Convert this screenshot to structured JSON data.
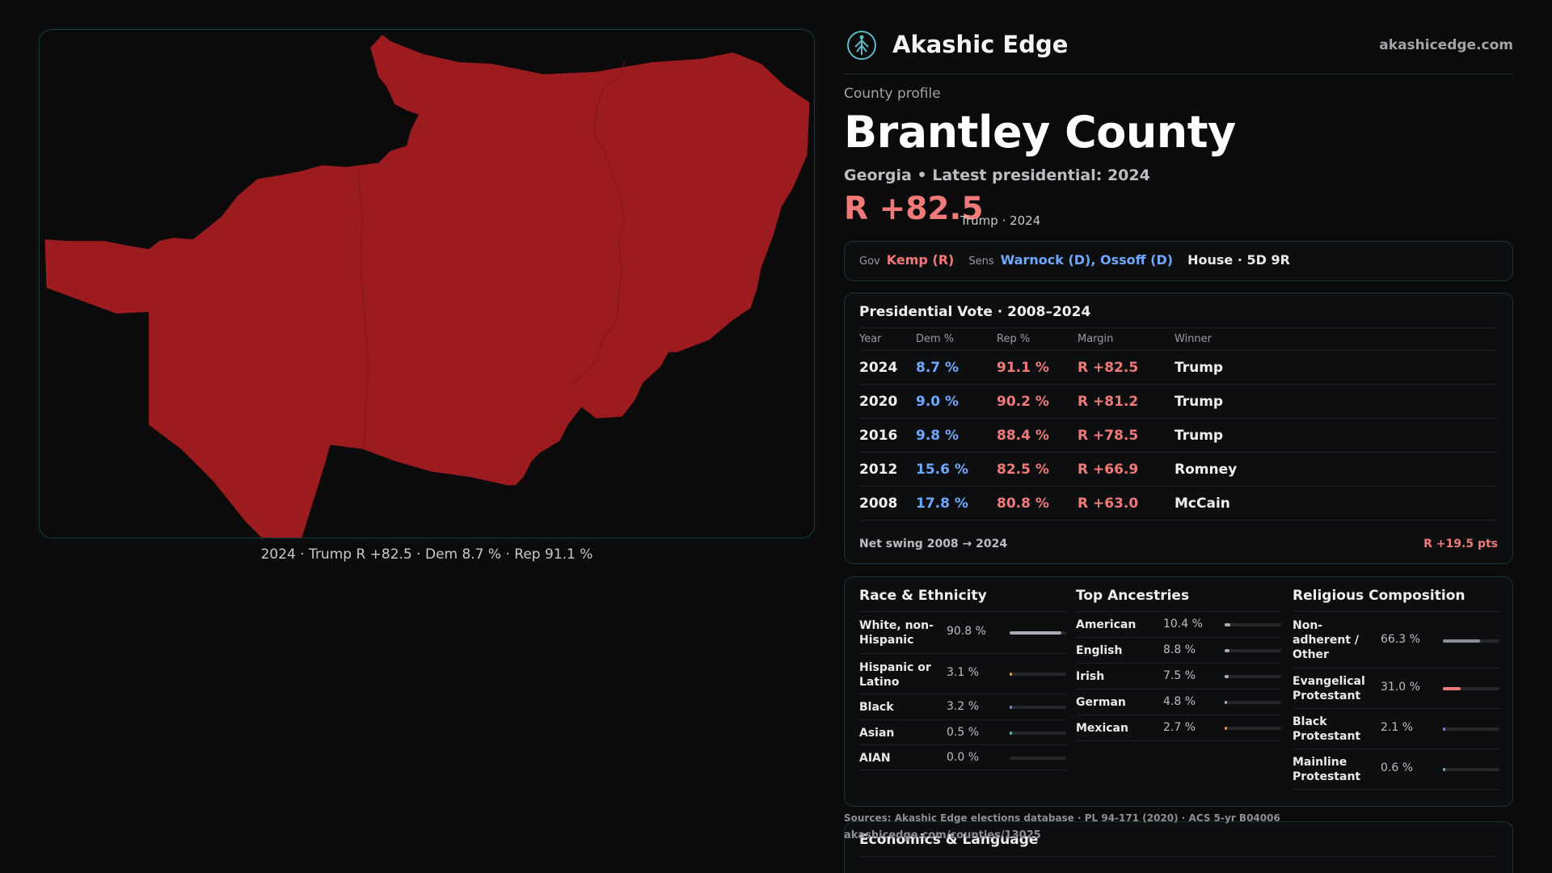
{
  "map": {
    "caption": "2024 · Trump R +82.5 · Dem 8.7 % · Rep 91.1 %",
    "fill_color": "#9b1b1f"
  },
  "brand": {
    "name": "Akashic Edge",
    "url": "akashicedge.com",
    "logo_icon": "tree-globe-icon"
  },
  "county": {
    "eyebrow": "County profile",
    "name": "Brantley County",
    "subtitle": "Georgia • Latest presidential: 2024",
    "margin": "R +82.5",
    "margin_note": "Trump · 2024"
  },
  "officials": {
    "gov_label": "Gov",
    "gov": "Kemp (R)",
    "sens_label": "Sens",
    "sens": "Warnock (D), Ossoff (D)",
    "house": "House · 5D 9R"
  },
  "presidential": {
    "title": "Presidential Vote · 2008–2024",
    "headers": [
      "Year",
      "Dem %",
      "Rep %",
      "Margin",
      "Winner"
    ],
    "rows": [
      {
        "year": "2024",
        "dem": "8.7 %",
        "rep": "91.1 %",
        "margin": "R +82.5",
        "winner": "Trump"
      },
      {
        "year": "2020",
        "dem": "9.0 %",
        "rep": "90.2 %",
        "margin": "R +81.2",
        "winner": "Trump"
      },
      {
        "year": "2016",
        "dem": "9.8 %",
        "rep": "88.4 %",
        "margin": "R +78.5",
        "winner": "Trump"
      },
      {
        "year": "2012",
        "dem": "15.6 %",
        "rep": "82.5 %",
        "margin": "R +66.9",
        "winner": "Romney"
      },
      {
        "year": "2008",
        "dem": "17.8 %",
        "rep": "80.8 %",
        "margin": "R +63.0",
        "winner": "McCain"
      }
    ],
    "swing_label": "Net swing 2008 → 2024",
    "swing_value": "R +19.5 pts"
  },
  "race": {
    "title": "Race & Ethnicity",
    "items": [
      {
        "label": "White, non-Hispanic",
        "value": "90.8 %",
        "pct": 90.8,
        "color": "#a9adb5"
      },
      {
        "label": "Hispanic or Latino",
        "value": "3.1 %",
        "pct": 3.1,
        "color": "#e8923c"
      },
      {
        "label": "Black",
        "value": "3.2 %",
        "pct": 3.2,
        "color": "#7a7fe0"
      },
      {
        "label": "Asian",
        "value": "0.5 %",
        "pct": 0.5,
        "color": "#5fb9a8"
      },
      {
        "label": "AIAN",
        "value": "0.0 %",
        "pct": 0.0,
        "color": "#c98a5a"
      }
    ]
  },
  "ancestry": {
    "title": "Top Ancestries",
    "items": [
      {
        "label": "American",
        "value": "10.4 %",
        "pct": 10.4,
        "color": "#a9adb5"
      },
      {
        "label": "English",
        "value": "8.8 %",
        "pct": 8.8,
        "color": "#a9adb5"
      },
      {
        "label": "Irish",
        "value": "7.5 %",
        "pct": 7.5,
        "color": "#a9adb5"
      },
      {
        "label": "German",
        "value": "4.8 %",
        "pct": 4.8,
        "color": "#a9adb5"
      },
      {
        "label": "Mexican",
        "value": "2.7 %",
        "pct": 2.7,
        "color": "#e8923c"
      }
    ]
  },
  "religion": {
    "title": "Religious Composition",
    "items": [
      {
        "label": "Non-adherent / Other",
        "value": "66.3 %",
        "pct": 66.3,
        "color": "#8a8e96"
      },
      {
        "label": "Evangelical Protestant",
        "value": "31.0 %",
        "pct": 31.0,
        "color": "#f07a7a"
      },
      {
        "label": "Black Protestant",
        "value": "2.1 %",
        "pct": 2.1,
        "color": "#7a7fe0"
      },
      {
        "label": "Mainline Protestant",
        "value": "0.6 %",
        "pct": 0.6,
        "color": "#5fb9a8"
      }
    ]
  },
  "footer": {
    "sources": "Sources: Akashic Edge elections database · PL 94-171 (2020) · ACS 5-yr B04006",
    "url": "akashicedge.com/counties/13025"
  },
  "economics": {
    "title": "Economics & Language"
  }
}
